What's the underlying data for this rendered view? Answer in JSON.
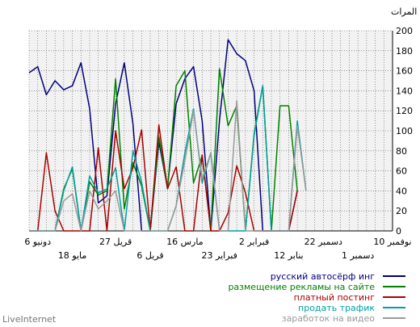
{
  "chart_data": {
    "type": "line",
    "ylabel": "المرات",
    "ylim": [
      0,
      200
    ],
    "yticks": [
      0,
      20,
      40,
      60,
      80,
      100,
      120,
      140,
      160,
      180,
      200
    ],
    "x_count": 43,
    "x_tick_labels_upper": [
      {
        "index": 1,
        "label": "6 دونيو"
      },
      {
        "index": 10,
        "label": "27 قريل"
      },
      {
        "index": 18,
        "label": "16 مارس"
      },
      {
        "index": 26,
        "label": "2 فبراير"
      },
      {
        "index": 34,
        "label": "22 دسمبر"
      },
      {
        "index": 42,
        "label": "10 نوفمبر"
      }
    ],
    "x_tick_labels_lower": [
      {
        "index": 5,
        "label": "18 مايو"
      },
      {
        "index": 14,
        "label": "6 قريل"
      },
      {
        "index": 22,
        "label": "23 فبراير"
      },
      {
        "index": 30,
        "label": "12 بنابر"
      },
      {
        "index": 38,
        "label": "1 دسمبر"
      }
    ],
    "series": [
      {
        "name": "русский автосёрф инг",
        "color": "#00007b",
        "values": [
          158,
          164,
          136,
          150,
          141,
          145,
          168,
          122,
          28,
          35,
          127,
          168,
          107,
          0,
          0,
          89,
          43,
          127,
          152,
          164,
          110,
          0,
          110,
          191,
          177,
          170,
          140,
          0,
          0,
          0,
          0,
          40,
          null,
          null,
          null,
          null,
          null,
          null,
          null,
          null,
          null,
          null,
          null
        ]
      },
      {
        "name": "размещение рекламы на сайте",
        "color": "#008000",
        "values": [
          0,
          0,
          0,
          0,
          42,
          62,
          0,
          49,
          36,
          40,
          152,
          22,
          68,
          45,
          0,
          94,
          42,
          145,
          160,
          48,
          75,
          0,
          162,
          105,
          125,
          0,
          97,
          145,
          0,
          125,
          125,
          40,
          null,
          null,
          null,
          null,
          null,
          null,
          null,
          null,
          null,
          null,
          null
        ]
      },
      {
        "name": "платный постинг",
        "color": "#a80000",
        "values": [
          0,
          0,
          78,
          20,
          0,
          0,
          0,
          0,
          83,
          0,
          100,
          42,
          63,
          101,
          0,
          106,
          42,
          64,
          0,
          0,
          76,
          0,
          0,
          18,
          65,
          38,
          0,
          0,
          0,
          0,
          0,
          40,
          null,
          null,
          null,
          null,
          null,
          null,
          null,
          null,
          null,
          null,
          null
        ]
      },
      {
        "name": "продать трафик",
        "color": "#00a0a0",
        "values": [
          0,
          0,
          0,
          0,
          40,
          64,
          0,
          55,
          38,
          42,
          63,
          0,
          80,
          49,
          0,
          0,
          0,
          25,
          78,
          122,
          48,
          78,
          0,
          0,
          0,
          0,
          95,
          145,
          0,
          0,
          0,
          110,
          40,
          null,
          null,
          null,
          null,
          null,
          null,
          null,
          null,
          null,
          null
        ]
      },
      {
        "name": "заработок на видео",
        "color": "#999999",
        "values": [
          0,
          0,
          0,
          0,
          30,
          37,
          0,
          40,
          22,
          30,
          40,
          0,
          0,
          0,
          0,
          0,
          0,
          25,
          70,
          120,
          52,
          78,
          0,
          0,
          130,
          0,
          0,
          0,
          0,
          0,
          0,
          105,
          40,
          null,
          null,
          null,
          null,
          null,
          null,
          null,
          null,
          null,
          null
        ]
      }
    ]
  },
  "footer": {
    "watermark": "LiveInternet"
  }
}
